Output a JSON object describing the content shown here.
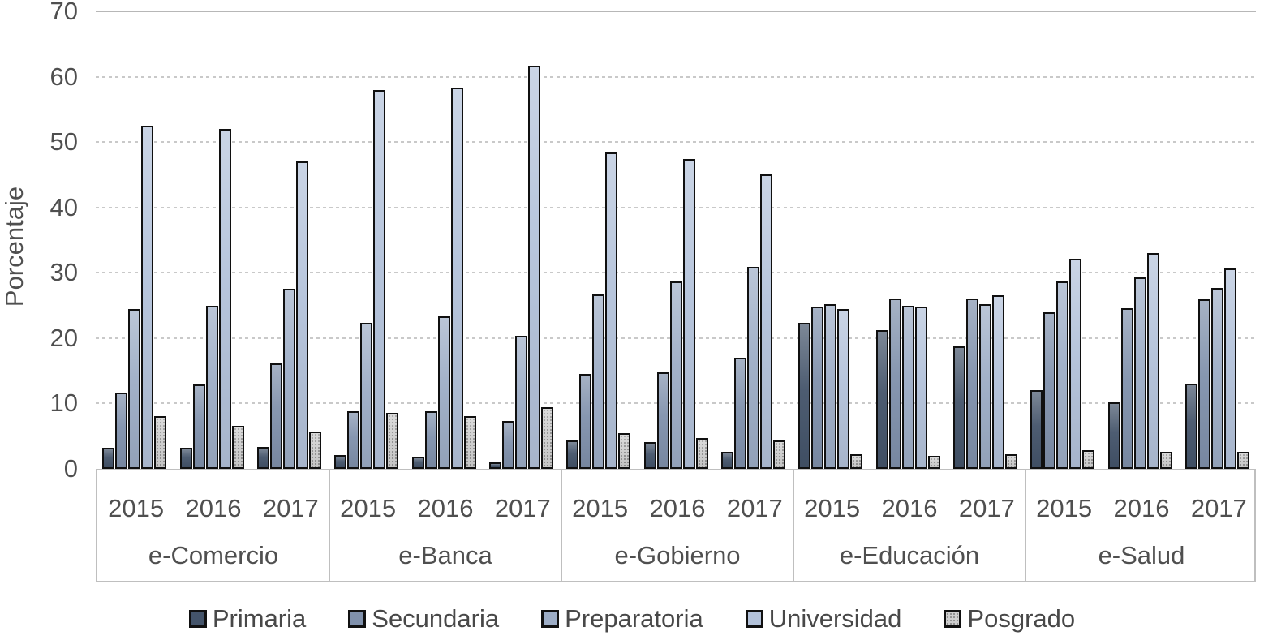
{
  "chart_data": {
    "type": "bar",
    "title": "",
    "xlabel": "",
    "ylabel": "Porcentaje",
    "ylim": [
      0,
      70
    ],
    "ytick_step": 10,
    "yticks": [
      "0",
      "10",
      "20",
      "30",
      "40",
      "50",
      "60",
      "70"
    ],
    "grid": "horizontal, dotted light gray, solid top line at 70",
    "legend_position": "bottom-center",
    "groups": [
      "e-Comercio",
      "e-Banca",
      "e-Gobierno",
      "e-Educación",
      "e-Salud"
    ],
    "years": [
      "2015",
      "2016",
      "2017"
    ],
    "value_order": "groups x years (15 columns): e-Comercio 2015,2016,2017; e-Banca 2015..; e-Gobierno; e-Educación; e-Salud",
    "series": [
      {
        "name": "Primaria",
        "color": "#44546A",
        "pattern": "solid",
        "values": [
          3.2,
          3.2,
          3.4,
          2.1,
          1.8,
          1.0,
          4.3,
          4.1,
          2.6,
          22.3,
          21.2,
          18.7,
          12.0,
          10.2,
          13.0
        ]
      },
      {
        "name": "Secundaria",
        "color": "#8091AC",
        "pattern": "solid",
        "values": [
          11.7,
          12.9,
          16.1,
          8.8,
          8.8,
          7.3,
          14.5,
          14.8,
          17.0,
          24.8,
          26.1,
          26.1,
          23.9,
          24.6,
          25.9
        ]
      },
      {
        "name": "Preparatoria",
        "color": "#9DADC6",
        "pattern": "solid",
        "values": [
          24.4,
          25.0,
          27.6,
          22.4,
          23.3,
          20.4,
          26.7,
          28.7,
          30.9,
          25.2,
          25.0,
          25.2,
          28.7,
          29.3,
          27.7
        ]
      },
      {
        "name": "Universidad",
        "color": "#B3C2DA",
        "pattern": "solid",
        "values": [
          52.5,
          52.0,
          47.0,
          57.9,
          58.3,
          61.7,
          48.4,
          47.4,
          45.0,
          24.4,
          24.8,
          26.6,
          32.2,
          33.0,
          30.6
        ]
      },
      {
        "name": "Posgrado",
        "color": "#CFCFCF",
        "pattern": "dots",
        "values": [
          8.1,
          6.6,
          5.7,
          8.6,
          8.1,
          9.4,
          5.5,
          4.7,
          4.4,
          2.2,
          2.0,
          2.2,
          2.8,
          2.6,
          2.6
        ]
      }
    ],
    "text_color": "#4f4f4f",
    "bar_border_color": "#101010",
    "axis_box_border_color": "#bfbfbf"
  }
}
